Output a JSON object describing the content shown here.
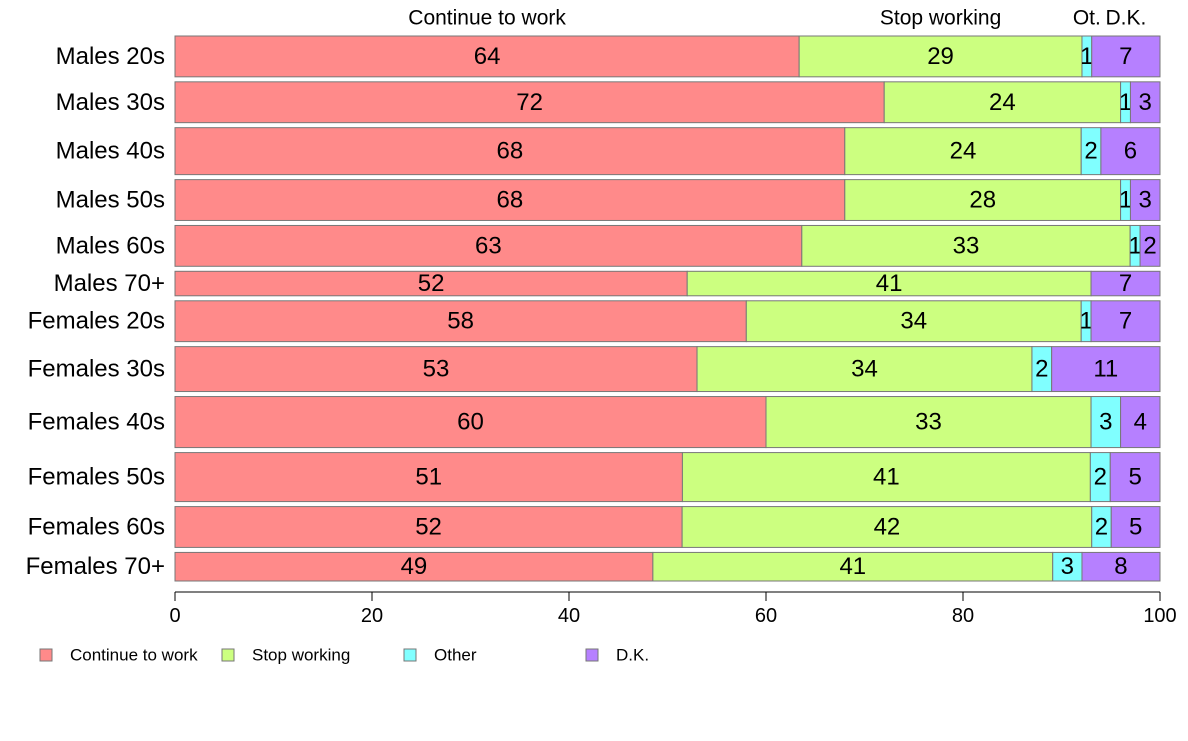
{
  "chart_data": {
    "type": "bar",
    "orientation": "horizontal",
    "stacked": true,
    "categories": [
      "Males 20s",
      "Males 30s",
      "Males 40s",
      "Males 50s",
      "Males 60s",
      "Males 70+",
      "Females 20s",
      "Females 30s",
      "Females 40s",
      "Females 50s",
      "Females 60s",
      "Females 70+"
    ],
    "relative_widths": [
      40,
      40,
      46,
      40,
      40,
      24,
      40,
      44,
      50,
      48,
      40,
      28
    ],
    "series": [
      {
        "name": "Continue to work",
        "color": "#FF8A8A",
        "values": [
          64,
          72,
          68,
          68,
          63,
          52,
          58,
          53,
          60,
          51,
          52,
          49
        ]
      },
      {
        "name": "Stop working",
        "color": "#CCFF80",
        "values": [
          29,
          24,
          24,
          28,
          33,
          41,
          34,
          34,
          33,
          41,
          42,
          41
        ]
      },
      {
        "name": "Other",
        "color": "#80FFFF",
        "values": [
          1,
          1,
          2,
          1,
          1,
          0,
          1,
          2,
          3,
          2,
          2,
          3
        ]
      },
      {
        "name": "D.K.",
        "color": "#B680FF",
        "values": [
          7,
          3,
          6,
          3,
          2,
          7,
          7,
          11,
          4,
          5,
          5,
          8
        ]
      }
    ],
    "top_labels": [
      "Continue to work",
      "Stop working",
      "Ot.",
      "D.K."
    ],
    "xlim": [
      0,
      100
    ],
    "xticks": [
      0,
      20,
      40,
      60,
      80,
      100
    ],
    "grid": false,
    "legend_position": "bottom-left",
    "title": "",
    "xlabel": "",
    "ylabel": ""
  }
}
